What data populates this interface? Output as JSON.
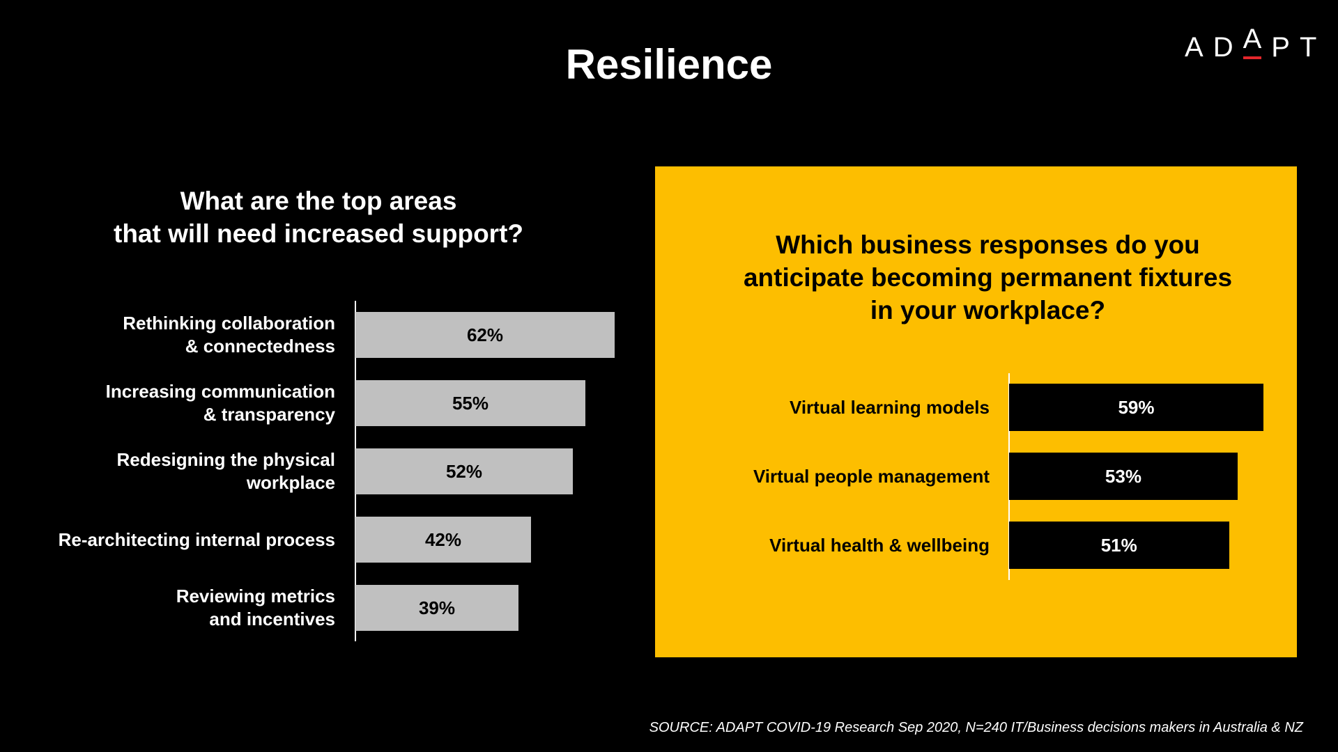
{
  "title": "Resilience",
  "logo": "ADAPT",
  "source": "SOURCE: ADAPT COVID-19 Research Sep 2020,  N=240 IT/Business decisions makers in Australia & NZ",
  "chart_data": [
    {
      "type": "bar",
      "orientation": "horizontal",
      "title": "What are the top areas\nthat will need increased support?",
      "categories": [
        "Rethinking collaboration\n& connectedness",
        "Increasing communication\n& transparency",
        "Redesigning the physical\nworkplace",
        "Re-architecting internal process",
        "Reviewing metrics\nand incentives"
      ],
      "values": [
        62,
        55,
        52,
        42,
        39
      ],
      "value_labels": [
        "62%",
        "55%",
        "52%",
        "42%",
        "39%"
      ],
      "color": "#c0c0c0"
    },
    {
      "type": "bar",
      "orientation": "horizontal",
      "title": "Which business responses do you\nanticipate becoming permanent fixtures\nin your workplace?",
      "categories": [
        "Virtual learning models",
        "Virtual people management",
        "Virtual health & wellbeing"
      ],
      "values": [
        59,
        53,
        51
      ],
      "value_labels": [
        "59%",
        "53%",
        "51%"
      ],
      "color": "#000000"
    }
  ]
}
